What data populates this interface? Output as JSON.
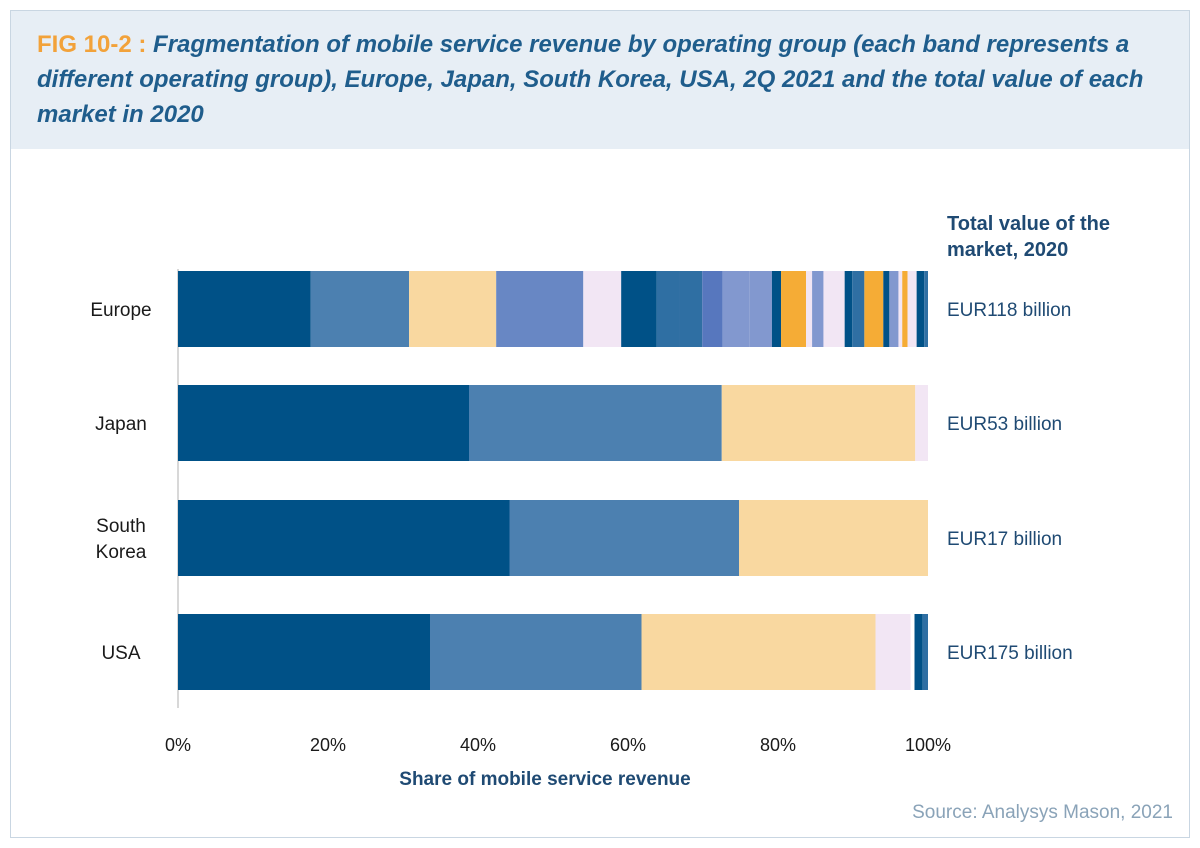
{
  "header": {
    "fig_label": "FIG 10-2 :",
    "title": "Fragmentation of mobile service revenue by operating group (each band represents a different operating group), Europe, Japan, South Korea, USA, 2Q 2021 and the total value of each market in 2020"
  },
  "totals_header": [
    "Total value of the",
    "market, 2020"
  ],
  "source": "Source: Analysys Mason, 2021",
  "colors": {
    "dark_blue": "#005187",
    "mid_blue": "#4c80b0",
    "peach": "#f9d8a0",
    "periwinkle": "#6887c4",
    "lavender_light": "#f2e6f4",
    "steel_blue": "#2f6fa3",
    "slate_blue": "#5777be",
    "light_periwinkle": "#8298cf",
    "orange": "#f5ac36",
    "axis": "#bdbdbd"
  },
  "chart_data": {
    "type": "bar",
    "orientation": "horizontal",
    "stacked": true,
    "title": "Fragmentation of mobile service revenue by operating group (each band represents a different operating group), Europe, Japan, South Korea, USA, 2Q 2021 and the total value of each market in 2020",
    "xlabel": "Share of mobile service revenue",
    "ylabel": "",
    "xlim": [
      0,
      100
    ],
    "x_ticks": [
      "0%",
      "20%",
      "40%",
      "60%",
      "80%",
      "100%"
    ],
    "categories": [
      "Europe",
      "Japan",
      "South Korea",
      "USA"
    ],
    "category_display": [
      [
        "Europe"
      ],
      [
        "Japan"
      ],
      [
        "South",
        "Korea"
      ],
      [
        "USA"
      ]
    ],
    "totals": [
      "EUR118 billion",
      "EUR53 billion",
      "EUR17 billion",
      "EUR175 billion"
    ],
    "bars": [
      {
        "category": "Europe",
        "segments": [
          {
            "value": 17.5,
            "color": "#005187"
          },
          {
            "value": 13.0,
            "color": "#4c80b0"
          },
          {
            "value": 11.5,
            "color": "#f9d8a0"
          },
          {
            "value": 11.5,
            "color": "#6887c4"
          },
          {
            "value": 5.0,
            "color": "#f2e6f4"
          },
          {
            "value": 4.7,
            "color": "#005187"
          },
          {
            "value": 3.0,
            "color": "#2f6fa3"
          },
          {
            "value": 3.0,
            "color": "#2f6fa3"
          },
          {
            "value": 2.7,
            "color": "#5777be"
          },
          {
            "value": 3.5,
            "color": "#8298cf"
          },
          {
            "value": 3.0,
            "color": "#8298cf"
          },
          {
            "value": 1.2,
            "color": "#005187"
          },
          {
            "value": 3.3,
            "color": "#f5ac36"
          },
          {
            "value": 0.8,
            "color": "#f2e6f4"
          },
          {
            "value": 1.5,
            "color": "#8298cf"
          },
          {
            "value": 2.8,
            "color": "#f2e6f4"
          },
          {
            "value": 1.0,
            "color": "#005187"
          },
          {
            "value": 1.6,
            "color": "#2f6fa3"
          },
          {
            "value": 2.5,
            "color": "#f5ac36"
          },
          {
            "value": 0.8,
            "color": "#005187"
          },
          {
            "value": 1.2,
            "color": "#8298cf"
          },
          {
            "value": 0.5,
            "color": "#f2e6f4"
          },
          {
            "value": 0.7,
            "color": "#f5ac36"
          },
          {
            "value": 1.2,
            "color": "#f2e6f4"
          },
          {
            "value": 1.0,
            "color": "#005187"
          },
          {
            "value": 0.5,
            "color": "#2f6fa3"
          }
        ]
      },
      {
        "category": "Japan",
        "segments": [
          {
            "value": 38.8,
            "color": "#005187"
          },
          {
            "value": 33.7,
            "color": "#4c80b0"
          },
          {
            "value": 25.8,
            "color": "#f9d8a0"
          },
          {
            "value": 1.7,
            "color": "#f2e6f4"
          }
        ]
      },
      {
        "category": "South Korea",
        "segments": [
          {
            "value": 44.2,
            "color": "#005187"
          },
          {
            "value": 30.6,
            "color": "#4c80b0"
          },
          {
            "value": 25.2,
            "color": "#f9d8a0"
          }
        ]
      },
      {
        "category": "USA",
        "segments": [
          {
            "value": 33.6,
            "color": "#005187"
          },
          {
            "value": 28.2,
            "color": "#4c80b0"
          },
          {
            "value": 31.2,
            "color": "#f9d8a0"
          },
          {
            "value": 4.7,
            "color": "#f2e6f4"
          },
          {
            "value": 0.5,
            "color": "#ffffff"
          },
          {
            "value": 1.1,
            "color": "#005187"
          },
          {
            "value": 0.7,
            "color": "#2f6fa3"
          }
        ]
      }
    ]
  }
}
